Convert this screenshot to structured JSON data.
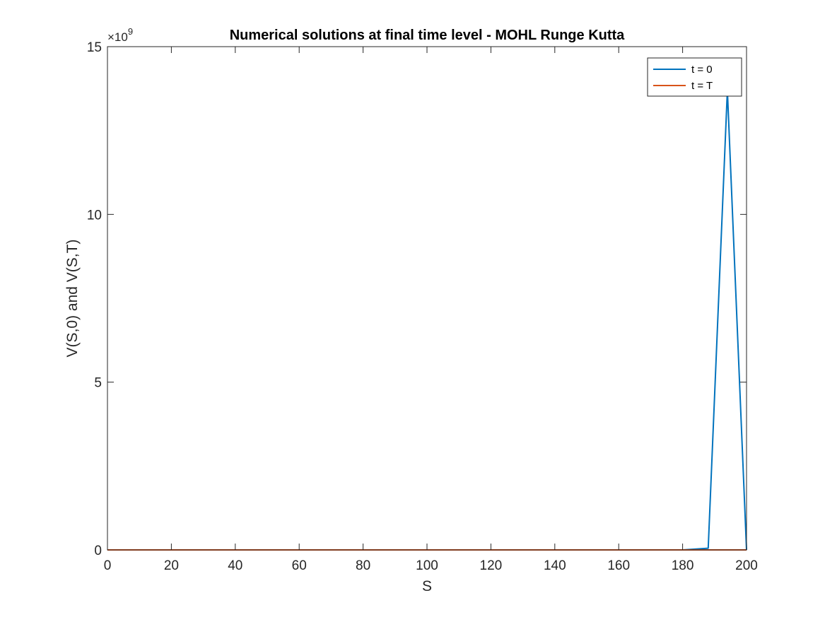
{
  "chart_data": {
    "type": "line",
    "title": "Numerical solutions at final time level - MOHL Runge Kutta",
    "xlabel": "S",
    "ylabel": "V(S,0) and V(S,T)",
    "xlim": [
      0,
      200
    ],
    "ylim": [
      0,
      15000000000
    ],
    "x_ticks": [
      0,
      20,
      40,
      60,
      80,
      100,
      120,
      140,
      160,
      180,
      200
    ],
    "x_tick_labels": [
      "0",
      "20",
      "40",
      "60",
      "80",
      "100",
      "120",
      "140",
      "160",
      "180",
      "200"
    ],
    "y_ticks": [
      0,
      5000000000,
      10000000000,
      15000000000
    ],
    "y_tick_labels": [
      "0",
      "5",
      "10",
      "15"
    ],
    "y_exponent_base": "×10",
    "y_exponent_power": "9",
    "grid": false,
    "legend_position": "top-right",
    "series": [
      {
        "name": "t = 0",
        "color": "#0072BD",
        "x": [
          0,
          180,
          188,
          194,
          200
        ],
        "y": [
          0,
          0,
          50000000,
          13700000000,
          0
        ]
      },
      {
        "name": "t = T",
        "color": "#D95319",
        "x": [
          0,
          200
        ],
        "y": [
          0,
          0
        ]
      }
    ]
  }
}
